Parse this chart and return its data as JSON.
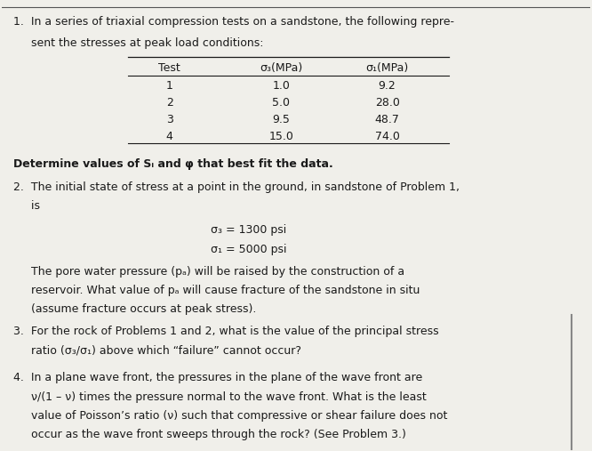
{
  "bg_color": "#f0efea",
  "text_color": "#1a1a1a",
  "fig_width": 6.66,
  "fig_height": 5.07,
  "dpi": 100,
  "problem1_line1": "1.  In a series of triaxial compression tests on a sandstone, the following repre-",
  "problem1_line2": "     sent the stresses at peak load conditions:",
  "table_headers": [
    "Test",
    "σ₃(MPa)",
    "σ₁(MPa)"
  ],
  "table_col1": [
    "1",
    "2",
    "3",
    "4"
  ],
  "table_col2": [
    "1.0",
    "5.0",
    "9.5",
    "15.0"
  ],
  "table_col3": [
    "9.2",
    "28.0",
    "48.7",
    "74.0"
  ],
  "determine_line": "Determine values of Sᵢ and φ that best fit the data.",
  "problem2_line1": "2.  The initial state of stress at a point in the ground, in sandstone of Problem 1,",
  "problem2_line2": "     is",
  "sigma3_line": "σ₃ = 1300 psi",
  "sigma1_line": "σ₁ = 5000 psi",
  "problem2_body1": "     The pore water pressure (pₐ) will be raised by the construction of a",
  "problem2_body2": "     reservoir. What value of pₐ will cause fracture of the sandstone in situ",
  "problem2_body3": "     (assume fracture occurs at peak stress).",
  "problem3_line1": "3.  For the rock of Problems 1 and 2, what is the value of the principal stress",
  "problem3_line2": "     ratio (σ₃/σ₁) above which “failure” cannot occur?",
  "problem4_line1": "4.  In a plane wave front, the pressures in the plane of the wave front are",
  "problem4_line2": "     ν/(1 – ν) times the pressure normal to the wave front. What is the least",
  "problem4_line3": "     value of Poisson’s ratio (ν) such that compressive or shear failure does not",
  "problem4_line4": "     occur as the wave front sweeps through the rock? (See Problem 3.)"
}
